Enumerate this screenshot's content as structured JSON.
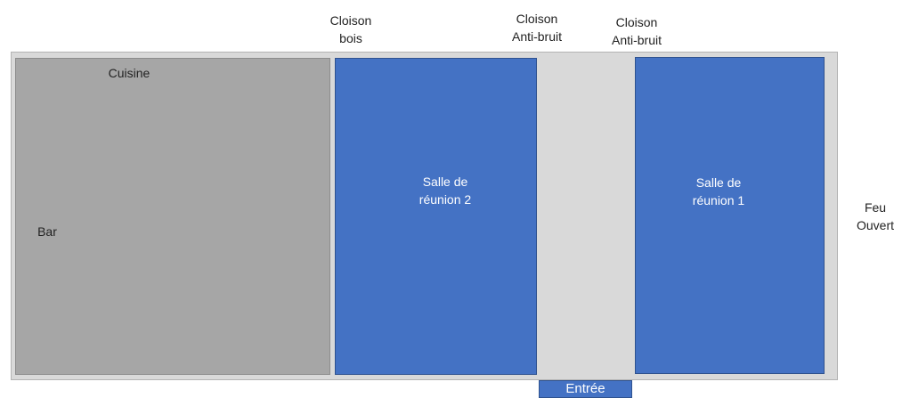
{
  "partitions": {
    "wood": [
      "Cloison",
      "bois"
    ],
    "soundproof_left": [
      "Cloison",
      "Anti-bruit"
    ],
    "soundproof_right": [
      "Cloison",
      "Anti-bruit"
    ]
  },
  "rooms": {
    "kitchen": "Cuisine",
    "bar": "Bar",
    "meeting_room_2": [
      "Salle de",
      "réunion 2"
    ],
    "meeting_room_1": [
      "Salle de",
      "réunion 1"
    ]
  },
  "entrance": "Entrée",
  "fireplace": [
    "Feu",
    "Ouvert"
  ],
  "colors": {
    "floor": "#d9d9d9",
    "kitchen": "#a6a6a6",
    "meeting_rooms": "#4472c4"
  }
}
